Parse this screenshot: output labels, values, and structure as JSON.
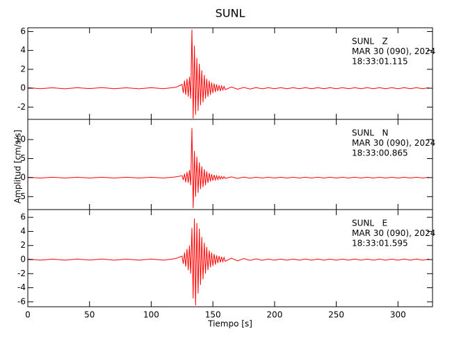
{
  "chart_data": [
    {
      "type": "line",
      "title": "SUNL",
      "ylim": [
        -3.3,
        6.4
      ],
      "yticks": [
        -2,
        0,
        2,
        4,
        6
      ],
      "annotations": [
        "SUNL   Z",
        "MAR 30 (090), 2024",
        "18:33:01.115"
      ],
      "x": [
        0,
        10,
        20,
        30,
        40,
        50,
        60,
        70,
        80,
        90,
        100,
        110,
        120,
        125,
        126,
        127,
        128,
        129,
        130,
        131,
        132,
        133,
        134,
        135,
        136,
        137,
        138,
        139,
        140,
        141,
        142,
        143,
        144,
        145,
        146,
        147,
        148,
        149,
        150,
        151,
        152,
        153,
        154,
        155,
        156,
        157,
        158,
        159,
        160,
        165,
        170,
        175,
        180,
        185,
        190,
        195,
        200,
        205,
        210,
        215,
        220,
        225,
        230,
        235,
        240,
        245,
        250,
        255,
        260,
        265,
        270,
        275,
        280,
        285,
        290,
        295,
        300,
        305,
        310,
        315,
        320,
        325
      ],
      "series": [
        {
          "color": "#ff0000",
          "values": [
            0.05,
            -0.05,
            0.04,
            -0.06,
            0.05,
            -0.04,
            0.06,
            -0.05,
            0.04,
            -0.06,
            0.05,
            -0.05,
            0.1,
            0.4,
            -0.5,
            0.8,
            -0.7,
            1.0,
            -0.9,
            1.2,
            -1.1,
            6.2,
            -3.2,
            4.5,
            -2.8,
            3.2,
            -2.4,
            2.6,
            -1.8,
            1.9,
            -1.5,
            1.4,
            -1.1,
            1.0,
            -0.9,
            0.8,
            -0.7,
            0.6,
            -0.5,
            0.5,
            -0.4,
            0.4,
            -0.3,
            0.3,
            -0.3,
            0.25,
            -0.2,
            0.2,
            -0.15,
            0.12,
            -0.1,
            0.08,
            -0.08,
            0.06,
            -0.06,
            0.05,
            -0.05,
            0.05,
            -0.05,
            0.05,
            -0.05,
            0.05,
            -0.05,
            0.05,
            -0.05,
            0.05,
            -0.05,
            0.05,
            -0.05,
            0.05,
            -0.05,
            0.05,
            -0.05,
            0.05,
            -0.05,
            0.05,
            -0.05,
            0.05,
            -0.05,
            0.05,
            -0.05,
            0.05
          ]
        }
      ]
    },
    {
      "type": "line",
      "ylabel": "Amplitud [cm/s/s]",
      "ylim": [
        -8.4,
        15.3
      ],
      "yticks": [
        -5,
        0,
        5,
        10
      ],
      "annotations": [
        "SUNL   N",
        "MAR 30 (090), 2024",
        "18:33:00.865"
      ],
      "x": [
        0,
        10,
        20,
        30,
        40,
        50,
        60,
        70,
        80,
        90,
        100,
        110,
        120,
        125,
        126,
        127,
        128,
        129,
        130,
        131,
        132,
        133,
        134,
        135,
        136,
        137,
        138,
        139,
        140,
        141,
        142,
        143,
        144,
        145,
        146,
        147,
        148,
        149,
        150,
        151,
        152,
        153,
        154,
        155,
        156,
        157,
        158,
        159,
        160,
        165,
        170,
        175,
        180,
        185,
        190,
        195,
        200,
        205,
        210,
        215,
        220,
        225,
        230,
        235,
        240,
        245,
        250,
        255,
        260,
        265,
        270,
        275,
        280,
        285,
        290,
        295,
        300,
        305,
        310,
        315,
        320,
        325
      ],
      "series": [
        {
          "color": "#ff0000",
          "values": [
            0.1,
            -0.1,
            0.1,
            -0.1,
            0.1,
            -0.1,
            0.1,
            -0.1,
            0.1,
            -0.1,
            0.1,
            -0.1,
            0.2,
            0.5,
            -0.6,
            1,
            -1.2,
            1.5,
            -1.4,
            2,
            -2,
            13,
            -8,
            7,
            -5,
            5.5,
            -4,
            4,
            -3,
            3,
            -2.5,
            2.2,
            -2,
            1.6,
            -1.4,
            1.2,
            -1,
            0.9,
            -0.8,
            0.7,
            -0.6,
            0.5,
            -0.5,
            0.4,
            -0.4,
            0.3,
            -0.3,
            0.25,
            -0.2,
            0.2,
            -0.2,
            0.15,
            -0.15,
            0.1,
            -0.1,
            0.1,
            -0.1,
            0.1,
            -0.1,
            0.1,
            -0.1,
            0.1,
            -0.1,
            0.1,
            -0.1,
            0.1,
            -0.1,
            0.1,
            -0.1,
            0.1,
            -0.1,
            0.1,
            -0.1,
            0.1,
            -0.1,
            0.1,
            -0.1,
            0.1,
            -0.1,
            0.1,
            -0.1,
            0.1
          ]
        }
      ]
    },
    {
      "type": "line",
      "xlabel": "Tiempo [s]",
      "xlim": [
        0,
        328
      ],
      "xticks": [
        0,
        50,
        100,
        150,
        200,
        250,
        300
      ],
      "ylim": [
        -6.7,
        7.1
      ],
      "yticks": [
        -6,
        -4,
        -2,
        0,
        2,
        4,
        6
      ],
      "annotations": [
        "SUNL   E",
        "MAR 30 (090), 2024",
        "18:33:01.595"
      ],
      "x": [
        0,
        10,
        20,
        30,
        40,
        50,
        60,
        70,
        80,
        90,
        100,
        110,
        120,
        125,
        126,
        127,
        128,
        129,
        130,
        131,
        132,
        133,
        134,
        135,
        136,
        137,
        138,
        139,
        140,
        141,
        142,
        143,
        144,
        145,
        146,
        147,
        148,
        149,
        150,
        151,
        152,
        153,
        154,
        155,
        156,
        157,
        158,
        159,
        160,
        165,
        170,
        175,
        180,
        185,
        190,
        195,
        200,
        205,
        210,
        215,
        220,
        225,
        230,
        235,
        240,
        245,
        250,
        255,
        260,
        265,
        270,
        275,
        280,
        285,
        290,
        295,
        300,
        305,
        310,
        315,
        320,
        325
      ],
      "series": [
        {
          "color": "#ff0000",
          "values": [
            0.08,
            -0.08,
            0.07,
            -0.08,
            0.08,
            -0.07,
            0.08,
            -0.08,
            0.07,
            -0.08,
            0.08,
            -0.08,
            0.15,
            0.5,
            -0.6,
            1,
            -1,
            1.5,
            -1.5,
            2,
            -2,
            4.5,
            -5.5,
            5.8,
            -6.5,
            5.2,
            -4.8,
            4.4,
            -3.6,
            3.2,
            -2.8,
            2.4,
            -2.0,
            1.8,
            -1.5,
            1.3,
            -1.1,
            1.0,
            -0.9,
            0.8,
            -0.7,
            0.6,
            -0.5,
            0.5,
            -0.4,
            0.4,
            -0.3,
            0.3,
            -0.25,
            0.2,
            -0.18,
            0.15,
            -0.12,
            0.1,
            -0.1,
            0.08,
            -0.08,
            0.08,
            -0.08,
            0.08,
            -0.08,
            0.08,
            -0.08,
            0.08,
            -0.08,
            0.08,
            -0.08,
            0.08,
            -0.08,
            0.08,
            -0.08,
            0.08,
            -0.08,
            0.08,
            -0.08,
            0.08,
            -0.08,
            0.08,
            -0.08,
            0.08,
            -0.08,
            0.08
          ]
        }
      ]
    }
  ]
}
